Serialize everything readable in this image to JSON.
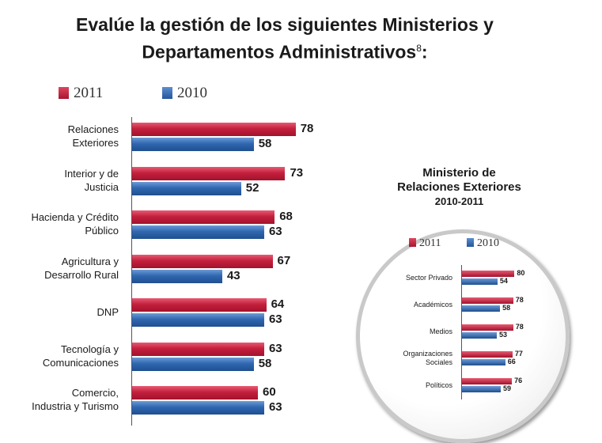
{
  "title_line1": "Evalúe la gestión de los siguientes Ministerios y",
  "title_line2": "Departamentos Administrativos",
  "title_footnote": "8",
  "title_colon": ":",
  "colors": {
    "y2011": "#c4203d",
    "y2010": "#2f67b0"
  },
  "chart_data": [
    {
      "type": "bar",
      "orientation": "horizontal",
      "title": "Evalúe la gestión de los siguientes Ministerios y Departamentos Administrativos",
      "categories": [
        [
          "Relaciones",
          "Exteriores"
        ],
        [
          "Interior y de",
          "Justicia"
        ],
        [
          "Hacienda y Crédito",
          "Público"
        ],
        [
          "Agricultura y",
          "Desarrollo Rural"
        ],
        [
          "DNP"
        ],
        [
          "Tecnología y",
          "Comunicaciones"
        ],
        [
          "Comercio,",
          "Industria y Turismo"
        ]
      ],
      "series": [
        {
          "name": "2011",
          "values": [
            78,
            73,
            68,
            67,
            64,
            63,
            60
          ]
        },
        {
          "name": "2010",
          "values": [
            58,
            52,
            63,
            43,
            63,
            58,
            63
          ]
        }
      ],
      "legend": "top-left"
    },
    {
      "type": "bar",
      "orientation": "horizontal",
      "title": "Ministerio de Relaciones Exteriores",
      "subtitle": "2010-2011",
      "categories": [
        [
          "Sector Privado"
        ],
        [
          "Académicos"
        ],
        [
          "Medios"
        ],
        [
          "Organizaciones",
          "Sociales"
        ],
        [
          "Políticos"
        ]
      ],
      "series": [
        {
          "name": "2011",
          "values": [
            80,
            78,
            78,
            77,
            76
          ]
        },
        {
          "name": "2010",
          "values": [
            54,
            58,
            53,
            66,
            59
          ]
        }
      ],
      "legend": "top"
    }
  ],
  "inset": {
    "title_line1": "Ministerio de",
    "title_line2": "Relaciones Exteriores",
    "subtitle": "2010-2011"
  }
}
